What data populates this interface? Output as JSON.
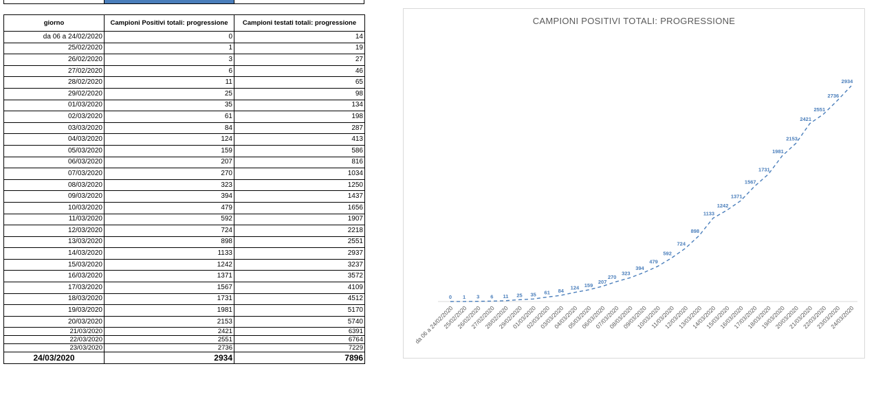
{
  "table": {
    "headers": [
      "giorno",
      "Campioni Positivi totali: progressione",
      "Campioni testati totali: progressione"
    ],
    "rows": [
      [
        "da 06 a 24/02/2020",
        "0",
        "14"
      ],
      [
        "25/02/2020",
        "1",
        "19"
      ],
      [
        "26/02/2020",
        "3",
        "27"
      ],
      [
        "27/02/2020",
        "6",
        "46"
      ],
      [
        "28/02/2020",
        "11",
        "65"
      ],
      [
        "29/02/2020",
        "25",
        "98"
      ],
      [
        "01/03/2020",
        "35",
        "134"
      ],
      [
        "02/03/2020",
        "61",
        "198"
      ],
      [
        "03/03/2020",
        "84",
        "287"
      ],
      [
        "04/03/2020",
        "124",
        "413"
      ],
      [
        "05/03/2020",
        "159",
        "586"
      ],
      [
        "06/03/2020",
        "207",
        "816"
      ],
      [
        "07/03/2020",
        "270",
        "1034"
      ],
      [
        "08/03/2020",
        "323",
        "1250"
      ],
      [
        "09/03/2020",
        "394",
        "1437"
      ],
      [
        "10/03/2020",
        "479",
        "1656"
      ],
      [
        "11/03/2020",
        "592",
        "1907"
      ],
      [
        "12/03/2020",
        "724",
        "2218"
      ],
      [
        "13/03/2020",
        "898",
        "2551"
      ],
      [
        "14/03/2020",
        "1133",
        "2937"
      ],
      [
        "15/03/2020",
        "1242",
        "3237"
      ],
      [
        "16/03/2020",
        "1371",
        "3572"
      ],
      [
        "17/03/2020",
        "1567",
        "4109"
      ],
      [
        "18/03/2020",
        "1731",
        "4512"
      ],
      [
        "19/03/2020",
        "1981",
        "5170"
      ],
      [
        "20/03/2020",
        "2153",
        "5740"
      ],
      [
        "21/03/2020",
        "2421",
        "6391"
      ],
      [
        "22/03/2020",
        "2551",
        "6764"
      ],
      [
        "23/03/2020",
        "2736",
        "7229"
      ],
      [
        "24/03/2020",
        "2934",
        "7896"
      ]
    ]
  },
  "chart_data": {
    "type": "line",
    "title": "CAMPIONI POSITIVI TOTALI: PROGRESSIONE",
    "categories": [
      "da 06 a 24/02/2020",
      "25/02/2020",
      "26/02/2020",
      "27/02/2020",
      "28/02/2020",
      "29/02/2020",
      "01/03/2020",
      "02/03/2020",
      "03/03/2020",
      "04/03/2020",
      "05/03/2020",
      "06/03/2020",
      "07/03/2020",
      "08/03/2020",
      "09/03/2020",
      "10/03/2020",
      "11/03/2020",
      "12/03/2020",
      "13/03/2020",
      "14/03/2020",
      "15/03/2020",
      "16/03/2020",
      "17/03/2020",
      "18/03/2020",
      "19/03/2020",
      "20/03/2020",
      "21/03/2020",
      "22/03/2020",
      "23/03/2020",
      "24/03/2020"
    ],
    "values": [
      0,
      1,
      3,
      6,
      11,
      25,
      35,
      61,
      84,
      124,
      159,
      207,
      270,
      323,
      394,
      479,
      592,
      724,
      898,
      1133,
      1242,
      1371,
      1567,
      1731,
      1981,
      2153,
      2421,
      2551,
      2736,
      2934
    ],
    "ylim": [
      0,
      2934
    ],
    "line_style": "dashed",
    "data_labels": true,
    "grid": false,
    "legend": "none",
    "colors": {
      "series": "#4a7ebb",
      "axis": "#d9d9d9",
      "title": "#595959"
    }
  }
}
